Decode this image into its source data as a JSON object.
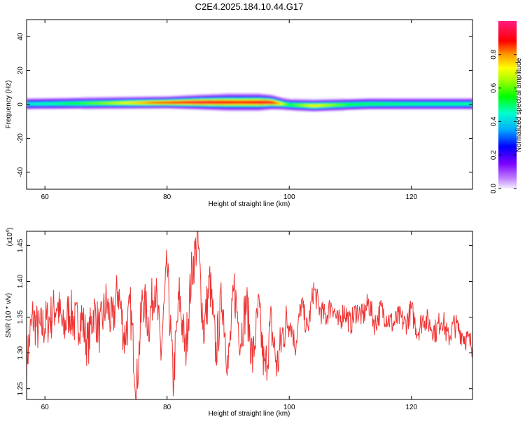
{
  "title": "C2E4.2025.184.10.44.G17",
  "colors": {
    "trace": "#ee3333",
    "axis": "#000000"
  },
  "chart_data": [
    {
      "type": "heatmap",
      "xlabel": "Height of straight line (km)",
      "ylabel": "Frequency (Hz)",
      "xlim": [
        57,
        130
      ],
      "ylim": [
        -50,
        50
      ],
      "x_ticks": [
        60,
        80,
        100,
        120
      ],
      "y_ticks": [
        -40,
        -20,
        0,
        20,
        40
      ],
      "colorbar": {
        "label": "Normalized spectral amplitude",
        "range": [
          0,
          1
        ],
        "ticks": [
          0.0,
          0.2,
          0.4,
          0.6,
          0.8
        ],
        "tick_labels": [
          "0.0",
          "0.2",
          "0.4",
          "0.6",
          "0.8"
        ]
      },
      "band": {
        "center": [
          [
            57,
            0.5
          ],
          [
            70,
            1
          ],
          [
            85,
            1.5
          ],
          [
            97,
            1.5
          ],
          [
            100,
            0
          ],
          [
            104,
            -0.5
          ],
          [
            113,
            0.5
          ],
          [
            130,
            0.5
          ]
        ],
        "halfwidth": [
          [
            57,
            2.5
          ],
          [
            80,
            2.5
          ],
          [
            90,
            3.5
          ],
          [
            95,
            3.5
          ],
          [
            99,
            2.5
          ],
          [
            130,
            2.5
          ]
        ],
        "peak": [
          [
            57,
            0.45
          ],
          [
            62,
            0.5
          ],
          [
            70,
            0.65
          ],
          [
            78,
            0.85
          ],
          [
            85,
            0.95
          ],
          [
            92,
            0.9
          ],
          [
            97,
            0.95
          ],
          [
            100,
            0.55
          ],
          [
            104,
            0.75
          ],
          [
            110,
            0.55
          ],
          [
            120,
            0.5
          ],
          [
            130,
            0.5
          ]
        ]
      }
    },
    {
      "type": "line",
      "xlabel": "Height of straight line (km)",
      "ylabel": "SNR (10 * v/v)",
      "y_multiplier_label": "(x10",
      "y_multiplier_exp": "4",
      "y_multiplier_close": ")",
      "xlim": [
        57,
        130
      ],
      "ylim": [
        1.235,
        1.47
      ],
      "x_ticks": [
        60,
        80,
        100,
        120
      ],
      "y_ticks": [
        1.25,
        1.3,
        1.35,
        1.4,
        1.45
      ],
      "y_tick_labels": [
        "1.25",
        "1.30",
        "1.35",
        "1.40",
        "1.45"
      ],
      "series": [
        {
          "color": "#ee3333",
          "x": [
            57,
            58,
            59,
            60,
            61,
            62,
            63,
            64,
            65,
            66,
            67,
            68,
            69,
            70,
            71,
            72,
            73,
            74,
            75,
            76,
            77,
            78,
            79,
            80,
            81,
            82,
            83,
            84,
            85,
            86,
            87,
            88,
            89,
            90,
            91,
            92,
            93,
            94,
            95,
            96,
            97,
            98,
            99,
            100,
            101,
            102,
            103,
            104,
            105,
            106,
            107,
            108,
            109,
            110,
            111,
            112,
            113,
            114,
            115,
            116,
            117,
            118,
            119,
            120,
            121,
            122,
            123,
            124,
            125,
            126,
            127,
            128,
            129,
            130
          ],
          "y": [
            1.29,
            1.35,
            1.33,
            1.34,
            1.35,
            1.37,
            1.33,
            1.36,
            1.34,
            1.35,
            1.31,
            1.36,
            1.33,
            1.37,
            1.34,
            1.39,
            1.32,
            1.36,
            1.25,
            1.38,
            1.34,
            1.4,
            1.3,
            1.42,
            1.26,
            1.38,
            1.3,
            1.41,
            1.46,
            1.33,
            1.4,
            1.3,
            1.38,
            1.28,
            1.39,
            1.32,
            1.37,
            1.29,
            1.36,
            1.27,
            1.34,
            1.28,
            1.33,
            1.35,
            1.31,
            1.37,
            1.33,
            1.39,
            1.36,
            1.35,
            1.37,
            1.34,
            1.36,
            1.34,
            1.36,
            1.35,
            1.37,
            1.34,
            1.36,
            1.35,
            1.34,
            1.35,
            1.34,
            1.36,
            1.33,
            1.35,
            1.34,
            1.33,
            1.35,
            1.32,
            1.34,
            1.33,
            1.32,
            1.31
          ]
        }
      ]
    }
  ]
}
